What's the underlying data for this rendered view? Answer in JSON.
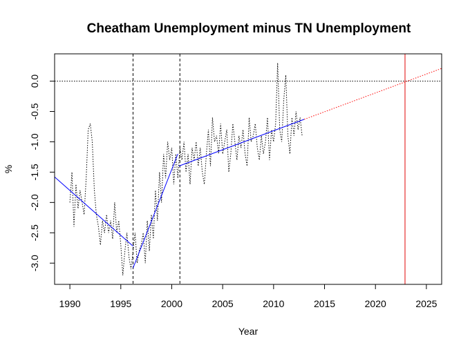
{
  "chart_data": {
    "type": "line",
    "title": "Cheatham Unemployment minus TN Unemployment",
    "xlabel": "Year",
    "ylabel": "%",
    "xlim": [
      1988.5,
      2026.5
    ],
    "ylim": [
      -3.35,
      0.45
    ],
    "x_ticks": [
      1990,
      1995,
      2000,
      2005,
      2010,
      2015,
      2020,
      2025
    ],
    "y_ticks": [
      -3.0,
      -2.5,
      -2.0,
      -1.5,
      -1.0,
      -0.5,
      0.0
    ],
    "y_tick_labels": [
      "-3.0",
      "-2.5",
      "-2.0",
      "-1.5",
      "-1.0",
      "-0.5",
      "0.0"
    ],
    "grid": false,
    "series": [
      {
        "style": "dotted",
        "color": "#000000",
        "x": [
          1990.0,
          1990.2,
          1990.4,
          1990.6,
          1990.8,
          1991.0,
          1991.2,
          1991.4,
          1991.6,
          1991.8,
          1992.0,
          1992.2,
          1992.4,
          1992.6,
          1992.8,
          1993.0,
          1993.2,
          1993.4,
          1993.6,
          1993.8,
          1994.0,
          1994.2,
          1994.4,
          1994.6,
          1994.8,
          1995.0,
          1995.2,
          1995.4,
          1995.6,
          1995.8,
          1996.0,
          1996.2,
          1996.4,
          1996.6,
          1996.8,
          1997.0,
          1997.2,
          1997.4,
          1997.6,
          1997.8,
          1998.0,
          1998.2,
          1998.4,
          1998.6,
          1998.8,
          1999.0,
          1999.2,
          1999.4,
          1999.6,
          1999.8,
          2000.0,
          2000.2,
          2000.4,
          2000.6,
          2000.8,
          2001.0,
          2001.2,
          2001.4,
          2001.6,
          2001.8,
          2002.0,
          2002.2,
          2002.4,
          2002.6,
          2002.8,
          2003.0,
          2003.2,
          2003.4,
          2003.6,
          2003.8,
          2004.0,
          2004.2,
          2004.4,
          2004.6,
          2004.8,
          2005.0,
          2005.2,
          2005.4,
          2005.6,
          2005.8,
          2006.0,
          2006.2,
          2006.4,
          2006.6,
          2006.8,
          2007.0,
          2007.2,
          2007.4,
          2007.6,
          2007.8,
          2008.0,
          2008.2,
          2008.4,
          2008.6,
          2008.8,
          2009.0,
          2009.2,
          2009.4,
          2009.6,
          2009.8,
          2010.0,
          2010.2,
          2010.4,
          2010.6,
          2010.8,
          2011.0,
          2011.2,
          2011.4,
          2011.6,
          2011.8,
          2012.0,
          2012.2,
          2012.4,
          2012.6,
          2012.8
        ],
        "y": [
          -2.0,
          -1.5,
          -2.4,
          -1.7,
          -2.1,
          -1.8,
          -2.0,
          -2.2,
          -1.6,
          -0.8,
          -0.7,
          -1.0,
          -1.8,
          -2.2,
          -2.4,
          -2.7,
          -2.3,
          -2.5,
          -2.2,
          -2.5,
          -2.3,
          -2.6,
          -2.0,
          -2.5,
          -2.3,
          -2.7,
          -3.2,
          -2.8,
          -2.5,
          -2.9,
          -3.1,
          -2.8,
          -2.5,
          -3.0,
          -2.8,
          -2.7,
          -2.5,
          -3.0,
          -2.3,
          -2.8,
          -2.2,
          -2.6,
          -1.8,
          -2.3,
          -1.5,
          -2.0,
          -1.2,
          -1.6,
          -1.0,
          -1.3,
          -1.1,
          -1.7,
          -1.2,
          -1.6,
          -1.1,
          -1.3,
          -1.0,
          -1.5,
          -1.2,
          -1.7,
          -1.1,
          -1.3,
          -1.0,
          -1.4,
          -1.1,
          -1.5,
          -1.7,
          -1.2,
          -0.8,
          -1.4,
          -0.6,
          -1.0,
          -0.9,
          -1.2,
          -0.7,
          -1.2,
          -1.0,
          -0.8,
          -1.5,
          -1.2,
          -0.7,
          -1.0,
          -1.3,
          -0.9,
          -1.1,
          -0.8,
          -1.2,
          -1.4,
          -0.6,
          -1.0,
          -0.9,
          -0.7,
          -1.1,
          -1.3,
          -0.9,
          -1.2,
          -1.0,
          -0.6,
          -1.3,
          -0.8,
          -1.0,
          -0.7,
          0.3,
          -0.8,
          -1.0,
          -0.3,
          0.1,
          -0.9,
          -1.2,
          -0.6,
          -0.9,
          -0.5,
          -0.8,
          -0.6,
          -0.9
        ]
      },
      {
        "style": "solid",
        "color": "#0000ff",
        "x": [
          1988.5,
          1996.2
        ],
        "y": [
          -1.58,
          -2.72
        ]
      },
      {
        "style": "solid",
        "color": "#0000ff",
        "x": [
          1996.2,
          2000.6
        ],
        "y": [
          -3.08,
          -1.2
        ]
      },
      {
        "style": "solid",
        "color": "#0000ff",
        "x": [
          2000.7,
          2013.0
        ],
        "y": [
          -1.4,
          -0.63
        ]
      },
      {
        "style": "dotted",
        "color": "#ff0000",
        "x": [
          2013.0,
          2026.5
        ],
        "y": [
          -0.63,
          0.21
        ]
      }
    ],
    "reference_lines": {
      "horizontal": [
        {
          "y": 0.0,
          "style": "dotted",
          "color": "#000000"
        }
      ],
      "vertical": [
        {
          "x": 1996.2,
          "style": "dashed",
          "color": "#000000"
        },
        {
          "x": 2000.8,
          "style": "dashed",
          "color": "#000000"
        },
        {
          "x": 2022.9,
          "style": "solid",
          "color": "#f08080"
        }
      ]
    }
  }
}
